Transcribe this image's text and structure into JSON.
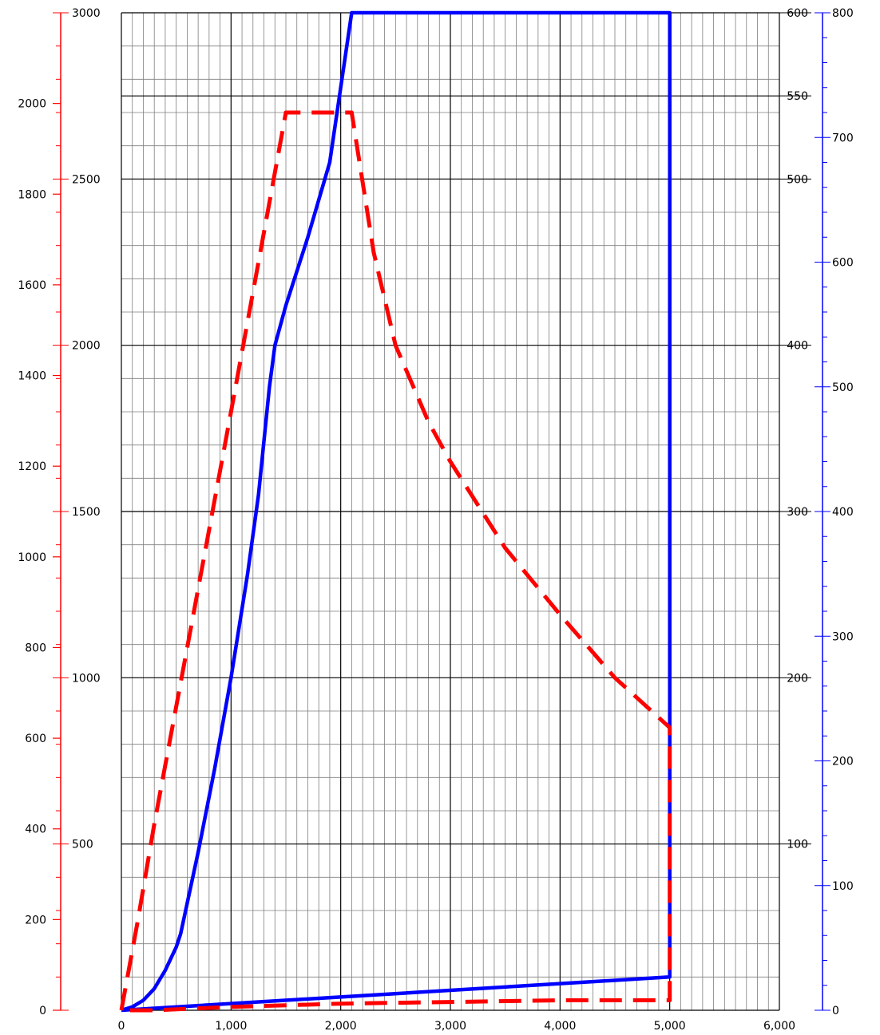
{
  "chart_data": {
    "type": "line",
    "title": "",
    "xlabel": "",
    "grid": true,
    "colors": {
      "red_axis": "#ff0000",
      "blue_axis": "#0000ff",
      "grid_major": "#000000",
      "grid_minor": "#7f7f7f"
    },
    "x_axis": {
      "range": [
        0,
        6000
      ],
      "ticks": [
        0,
        1000,
        2000,
        3000,
        4000,
        5000,
        6000
      ],
      "tick_labels": [
        "0",
        "1,000",
        "2,000",
        "3,000",
        "4,000",
        "5,000",
        "6,000"
      ]
    },
    "y_axes": [
      {
        "id": "left_outer",
        "side": "left",
        "color": "#ff0000",
        "axis_line": false,
        "range": [
          0,
          2200
        ],
        "ticks": [
          0,
          200,
          400,
          600,
          800,
          1000,
          1200,
          1400,
          1600,
          1800,
          2000
        ],
        "tick_labels": [
          "0",
          "200",
          "400",
          "600",
          "800",
          "1000",
          "1200",
          "1400",
          "1600",
          "1800",
          "2000"
        ]
      },
      {
        "id": "left_inner",
        "side": "left",
        "color": "#ff0000",
        "axis_line": true,
        "range": [
          0,
          3000
        ],
        "minor_step": 100,
        "ticks": [
          500,
          1000,
          1500,
          2000,
          2500,
          3000
        ],
        "tick_labels": [
          "500",
          "1000",
          "1500",
          "2000",
          "2500",
          "3000"
        ]
      },
      {
        "id": "right_inner",
        "side": "right",
        "color": "#000000",
        "axis_line": false,
        "range": [
          0,
          600
        ],
        "ticks": [
          100,
          200,
          300,
          400,
          500,
          550,
          600
        ],
        "tick_labels": [
          "100",
          "200",
          "300",
          "400",
          "500",
          "550",
          "600"
        ]
      },
      {
        "id": "right_outer",
        "side": "right",
        "color": "#0000ff",
        "axis_line": true,
        "range": [
          0,
          800
        ],
        "minor_step": 20,
        "ticks": [
          0,
          100,
          200,
          300,
          400,
          500,
          600,
          700,
          800
        ],
        "tick_labels": [
          "0",
          "100",
          "200",
          "300",
          "400",
          "500",
          "600",
          "700",
          "800"
        ]
      }
    ],
    "series": [
      {
        "color": "#0000ff",
        "style": "solid",
        "axis": "right_inner",
        "x": [
          0,
          100,
          200,
          300,
          400,
          500,
          540,
          700,
          850,
          1000,
          1150,
          1250,
          1350,
          1400,
          1500,
          1700,
          1900,
          2100,
          5000,
          5000,
          5000,
          0
        ],
        "y": [
          0,
          2,
          6,
          13,
          24,
          38,
          46,
          95,
          145,
          200,
          262,
          310,
          375,
          400,
          424,
          465,
          510,
          600,
          600,
          200,
          20,
          0
        ]
      },
      {
        "color": "#ff0000",
        "style": "dashed",
        "axis": "left_inner",
        "x": [
          0,
          150,
          300,
          600,
          1000,
          1250,
          1500,
          2100,
          2300,
          2500,
          2800,
          3000,
          3500,
          4000,
          4500,
          5000,
          5000,
          4000,
          3000,
          2000,
          1000,
          300,
          0
        ],
        "y": [
          0,
          270,
          560,
          1090,
          1800,
          2250,
          2700,
          2700,
          2280,
          2000,
          1770,
          1650,
          1390,
          1190,
          1000,
          850,
          30,
          30,
          25,
          20,
          10,
          0,
          0
        ]
      }
    ]
  }
}
